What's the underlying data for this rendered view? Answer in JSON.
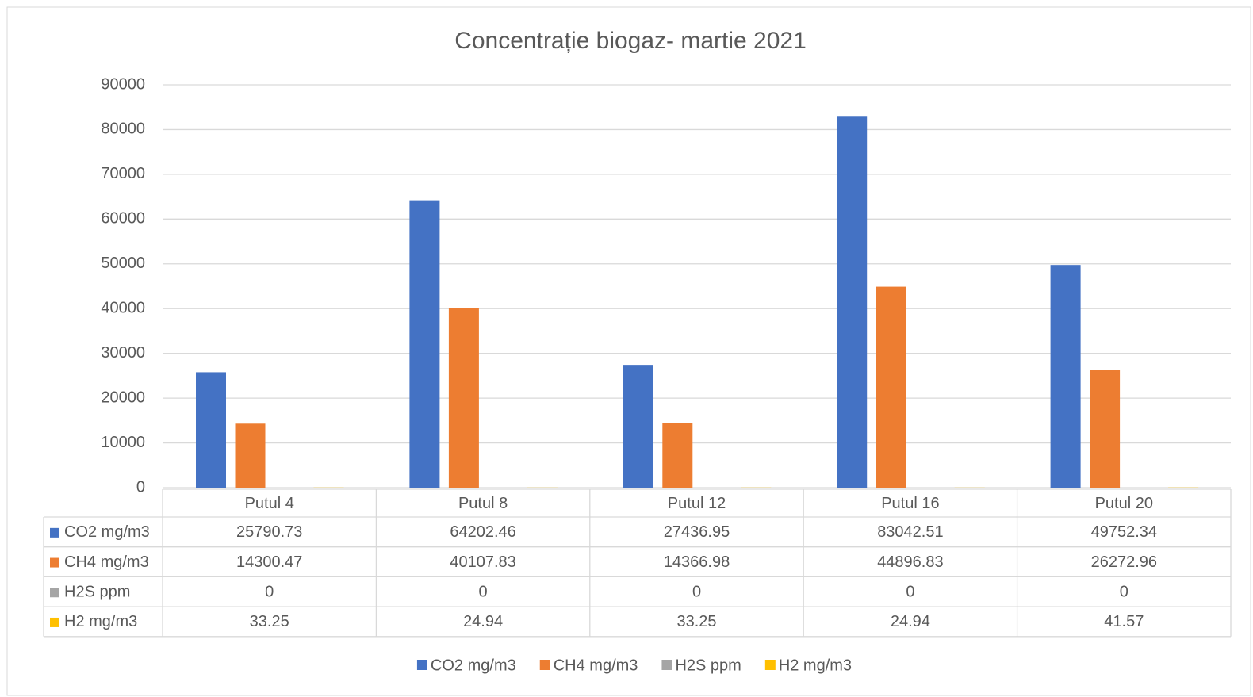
{
  "chart_data": {
    "type": "bar",
    "title": "Concentrație biogaz- martie 2021",
    "categories": [
      "Putul 4",
      "Putul 8",
      "Putul 12",
      "Putul 16",
      "Putul 20"
    ],
    "series": [
      {
        "name": "CO2 mg/m3",
        "color": "#4472c4",
        "values": [
          25790.73,
          64202.46,
          27436.95,
          83042.51,
          49752.34
        ]
      },
      {
        "name": "CH4 mg/m3",
        "color": "#ed7d31",
        "values": [
          14300.47,
          40107.83,
          14366.98,
          44896.83,
          26272.96
        ]
      },
      {
        "name": "H2S ppm",
        "color": "#a5a5a5",
        "values": [
          0,
          0,
          0,
          0,
          0
        ]
      },
      {
        "name": "H2 mg/m3",
        "color": "#ffc000",
        "values": [
          33.25,
          24.94,
          33.25,
          24.94,
          41.57
        ]
      }
    ],
    "ylim": [
      0,
      90000
    ],
    "yticks": [
      0,
      10000,
      20000,
      30000,
      40000,
      50000,
      60000,
      70000,
      80000,
      90000
    ],
    "grid": true,
    "legend": "bottom",
    "data_table": true
  }
}
